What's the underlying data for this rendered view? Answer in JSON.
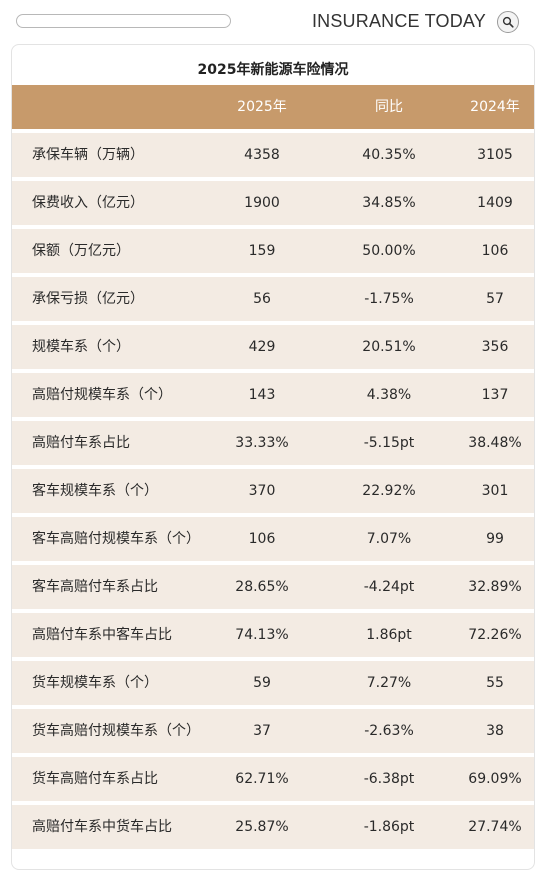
{
  "header": {
    "brand": "INSURANCE TODAY"
  },
  "table": {
    "title": "2025年新能源车险情况",
    "columns": [
      "",
      "2025年",
      "同比",
      "2024年"
    ],
    "rows": [
      {
        "label": "承保车辆（万辆）",
        "v2025": "4358",
        "yoy": "40.35%",
        "v2024": "3105"
      },
      {
        "label": "保费收入（亿元）",
        "v2025": "1900",
        "yoy": "34.85%",
        "v2024": "1409"
      },
      {
        "label": "保额（万亿元）",
        "v2025": "159",
        "yoy": "50.00%",
        "v2024": "106"
      },
      {
        "label": "承保亏损（亿元）",
        "v2025": "56",
        "yoy": "-1.75%",
        "v2024": "57"
      },
      {
        "label": "规模车系（个）",
        "v2025": "429",
        "yoy": "20.51%",
        "v2024": "356"
      },
      {
        "label": "高赔付规模车系（个）",
        "v2025": "143",
        "yoy": "4.38%",
        "v2024": "137"
      },
      {
        "label": "高赔付车系占比",
        "v2025": "33.33%",
        "yoy": "-5.15pt",
        "v2024": "38.48%"
      },
      {
        "label": "客车规模车系（个）",
        "v2025": "370",
        "yoy": "22.92%",
        "v2024": "301"
      },
      {
        "label": "客车高赔付规模车系（个）",
        "v2025": "106",
        "yoy": "7.07%",
        "v2024": "99"
      },
      {
        "label": "客车高赔付车系占比",
        "v2025": "28.65%",
        "yoy": "-4.24pt",
        "v2024": "32.89%"
      },
      {
        "label": "高赔付车系中客车占比",
        "v2025": "74.13%",
        "yoy": "1.86pt",
        "v2024": "72.26%"
      },
      {
        "label": "货车规模车系（个）",
        "v2025": "59",
        "yoy": "7.27%",
        "v2024": "55"
      },
      {
        "label": "货车高赔付规模车系（个）",
        "v2025": "37",
        "yoy": "-2.63%",
        "v2024": "38"
      },
      {
        "label": "货车高赔付车系占比",
        "v2025": "62.71%",
        "yoy": "-6.38pt",
        "v2024": "69.09%"
      },
      {
        "label": "高赔付车系中货车占比",
        "v2025": "25.87%",
        "yoy": "-1.86pt",
        "v2024": "27.74%"
      }
    ]
  },
  "colors": {
    "header_bg": "#c79a6b",
    "row_bg": "#f3ebe3"
  },
  "icons": {
    "search": "search-icon"
  }
}
